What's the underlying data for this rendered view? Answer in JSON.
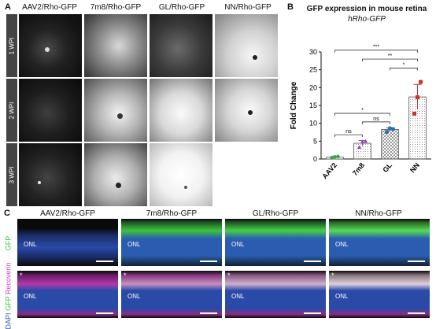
{
  "panel_a": {
    "letter": "A",
    "columns": [
      "AAV2/Rho-GFP",
      "7m8/Rho-GFP",
      "GL/Rho-GFP",
      "NN/Rho-GFP"
    ],
    "rows": [
      "1 WPI",
      "2 WPI",
      "3 WPI"
    ]
  },
  "panel_b": {
    "letter": "B",
    "title": "GFP expression in mouse retina",
    "subtitle": "hRho-GFP"
  },
  "chart_data": {
    "type": "bar",
    "title": "GFP expression in mouse retina",
    "subtitle": "hRho-GFP",
    "categories": [
      "AAV2",
      "7m8",
      "GL",
      "NN"
    ],
    "values": [
      0.5,
      4.4,
      8.3,
      17.4
    ],
    "errors": [
      0.3,
      0.8,
      0.4,
      3.5
    ],
    "points": [
      [
        0.3,
        0.6,
        0.7
      ],
      [
        3.3,
        4.8,
        5.0
      ],
      [
        7.6,
        8.6,
        8.4
      ],
      [
        12.7,
        17.3,
        21.6
      ]
    ],
    "ylabel": "Fold Change",
    "xlabel": "",
    "ylim": [
      0,
      30
    ],
    "yticks": [
      0,
      5,
      10,
      15,
      20,
      25,
      30
    ],
    "bar_fills": [
      "#ffffff",
      "#ffffff",
      "#ffffff",
      "#ffffff"
    ],
    "point_colors": [
      "#3aa04a",
      "#8e44ad",
      "#2b6cb0",
      "#d0312d"
    ],
    "significance": [
      {
        "from": "AAV2",
        "to": "7m8",
        "label": "ns"
      },
      {
        "from": "7m8",
        "to": "GL",
        "label": "ns"
      },
      {
        "from": "AAV2",
        "to": "GL",
        "label": "*"
      },
      {
        "from": "GL",
        "to": "NN",
        "label": "*"
      },
      {
        "from": "7m8",
        "to": "NN",
        "label": "**"
      },
      {
        "from": "AAV2",
        "to": "NN",
        "label": "***"
      }
    ]
  },
  "panel_c": {
    "letter": "C",
    "columns": [
      "AAV2/Rho-GFP",
      "7m8/Rho-GFP",
      "GL/Rho-GFP",
      "NN/Rho-GFP"
    ],
    "row1_label": "GFP",
    "row2_label_parts": [
      "DAPI",
      "GFP",
      "Recoverin"
    ],
    "layer_label": "ONL",
    "star": "*",
    "colors": {
      "dapi": "#2a5db0",
      "gfp": "#3ec43e",
      "recoverin": "#d23cc8"
    }
  }
}
